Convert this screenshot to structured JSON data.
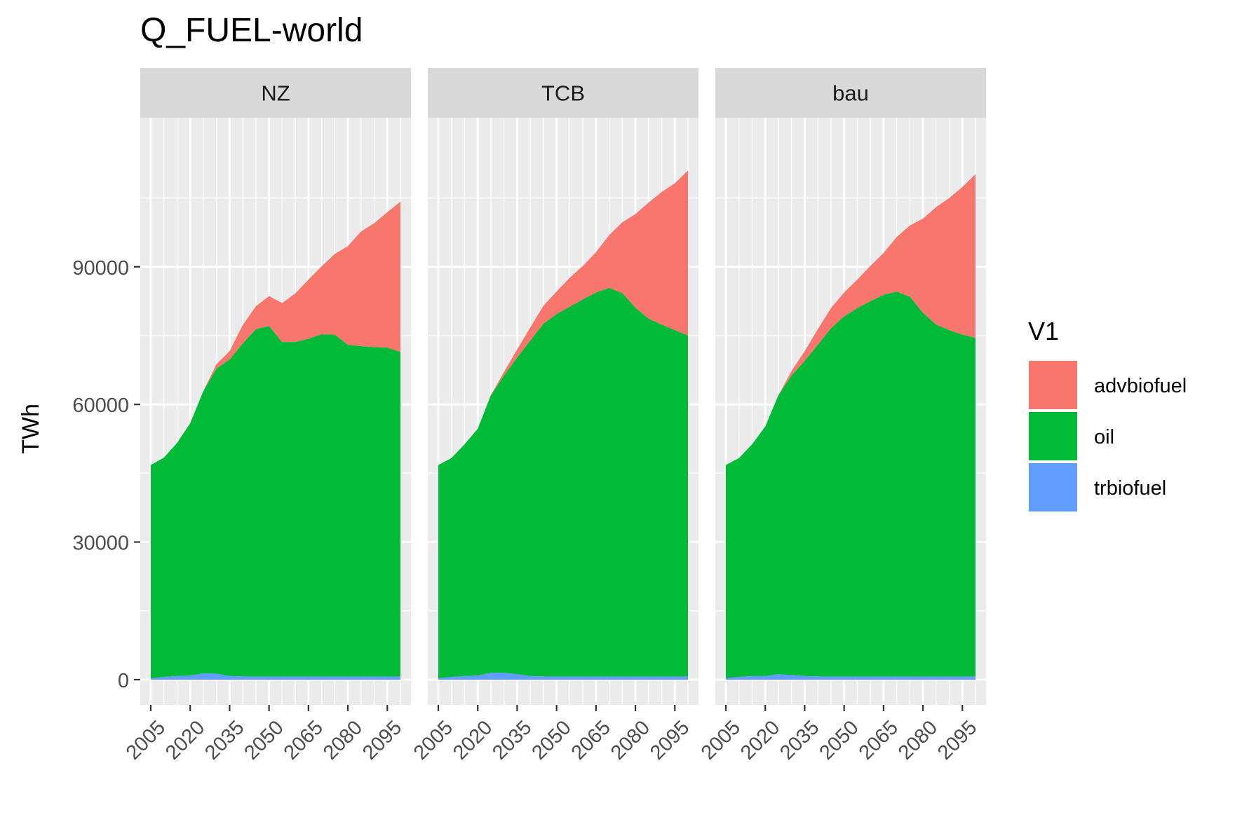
{
  "chart_data": {
    "type": "area",
    "title": "Q_FUEL-world",
    "xlabel": "",
    "ylabel": "TWh",
    "facets": [
      "NZ",
      "TCB",
      "bau"
    ],
    "x": [
      2005,
      2010,
      2015,
      2020,
      2025,
      2030,
      2035,
      2040,
      2045,
      2050,
      2055,
      2060,
      2065,
      2070,
      2075,
      2080,
      2085,
      2090,
      2095,
      2100
    ],
    "x_ticks": [
      2005,
      2020,
      2035,
      2050,
      2065,
      2080,
      2095
    ],
    "xlim": [
      2001,
      2104
    ],
    "y_ticks": [
      0,
      30000,
      60000,
      90000
    ],
    "ylim": [
      -5500,
      122500
    ],
    "stack_order": [
      "trbiofuel",
      "oil",
      "advbiofuel"
    ],
    "legend": {
      "title": "V1",
      "position": "right",
      "entries": [
        "advbiofuel",
        "oil",
        "trbiofuel"
      ]
    },
    "colors": {
      "advbiofuel": "#F8766D",
      "oil": "#00BA38",
      "trbiofuel": "#619CFF",
      "panel_bg": "#EBEBEB",
      "strip_bg": "#D9D9D9",
      "grid": "#FFFFFF"
    },
    "grid": true,
    "panels": [
      {
        "facet": "NZ",
        "series": [
          {
            "name": "trbiofuel",
            "values": [
              300,
              600,
              800,
              900,
              1400,
              1300,
              800,
              700,
              700,
              700,
              700,
              700,
              700,
              700,
              700,
              700,
              700,
              700,
              700,
              700
            ]
          },
          {
            "name": "oil",
            "values": [
              46500,
              47800,
              50800,
              55000,
              61500,
              66500,
              69000,
              72600,
              75700,
              76400,
              72900,
              72900,
              73600,
              74600,
              74500,
              72300,
              72000,
              71800,
              71700,
              70700
            ]
          },
          {
            "name": "advbiofuel",
            "values": [
              0,
              0,
              0,
              0,
              0,
              1000,
              1800,
              4000,
              5000,
              6500,
              8500,
              10600,
              12900,
              14800,
              17600,
              21500,
              25000,
              27000,
              29500,
              32800
            ]
          }
        ]
      },
      {
        "facet": "TCB",
        "series": [
          {
            "name": "trbiofuel",
            "values": [
              300,
              600,
              800,
              900,
              1500,
              1500,
              1200,
              800,
              700,
              700,
              700,
              700,
              700,
              700,
              700,
              700,
              700,
              700,
              700,
              700
            ]
          },
          {
            "name": "oil",
            "values": [
              46500,
              47700,
              50500,
              53800,
              60500,
              64800,
              69000,
              73100,
              76900,
              79000,
              80600,
              82200,
              83700,
              84700,
              83600,
              80400,
              78000,
              76700,
              75500,
              74300
            ]
          },
          {
            "name": "advbiofuel",
            "values": [
              0,
              0,
              0,
              0,
              0,
              800,
              1800,
              2900,
              3900,
              4900,
              6300,
              7300,
              8800,
              11500,
              15400,
              20400,
              25300,
              28900,
              32000,
              36000
            ]
          }
        ]
      },
      {
        "facet": "bau",
        "series": [
          {
            "name": "trbiofuel",
            "values": [
              300,
              600,
              800,
              800,
              1200,
              1000,
              800,
              700,
              700,
              700,
              700,
              700,
              700,
              700,
              700,
              700,
              700,
              700,
              700,
              700
            ]
          },
          {
            "name": "oil",
            "values": [
              46500,
              47700,
              50500,
              54400,
              60800,
              65300,
              68700,
              72300,
              75900,
              78500,
              80300,
              81800,
              83200,
              83900,
              82800,
              79300,
              76700,
              75500,
              74500,
              73800
            ]
          },
          {
            "name": "advbiofuel",
            "values": [
              0,
              0,
              0,
              0,
              0,
              1000,
              2100,
              3400,
              4400,
              5200,
              6200,
              7700,
              9100,
              11900,
              15500,
              20500,
              25600,
              28800,
              32200,
              35700
            ]
          }
        ]
      }
    ]
  }
}
